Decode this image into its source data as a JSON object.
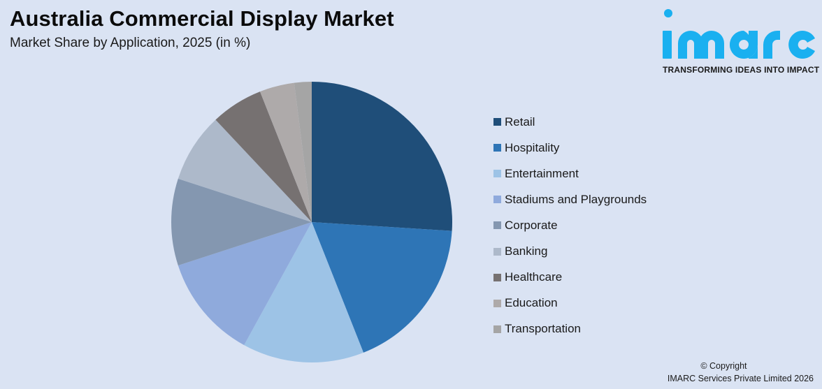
{
  "header": {
    "title": "Australia Commercial Display Market",
    "subtitle": "Market Share by Application, 2025 (in %)"
  },
  "logo": {
    "wordmark": "imarc",
    "tagline": "TRANSFORMING IDEAS INTO IMPACT",
    "color": "#1ab0f0"
  },
  "footer": {
    "copyright_line1": "© Copyright",
    "copyright_line2": "IMARC Services Private Limited 2026"
  },
  "colors": {
    "background": "#dae3f3"
  },
  "legend": {
    "items": [
      {
        "label": "Retail",
        "color": "#1f4e79"
      },
      {
        "label": "Hospitality",
        "color": "#2e75b6"
      },
      {
        "label": "Entertainment",
        "color": "#9dc3e6"
      },
      {
        "label": "Stadiums and Playgrounds",
        "color": "#8faadc"
      },
      {
        "label": "Corporate",
        "color": "#8497b0"
      },
      {
        "label": "Banking",
        "color": "#adb9ca"
      },
      {
        "label": "Healthcare",
        "color": "#767171"
      },
      {
        "label": "Education",
        "color": "#aeaaaa"
      },
      {
        "label": "Transportation",
        "color": "#a5a5a5"
      }
    ]
  },
  "chart_data": {
    "type": "pie",
    "title": "Australia Commercial Display Market",
    "subtitle": "Market Share by Application, 2025 (in %)",
    "categories": [
      "Retail",
      "Hospitality",
      "Entertainment",
      "Stadiums and Playgrounds",
      "Corporate",
      "Banking",
      "Healthcare",
      "Education",
      "Transportation"
    ],
    "values": [
      26,
      18,
      14,
      12,
      10,
      8,
      6,
      4,
      2
    ],
    "colors": [
      "#1f4e79",
      "#2e75b6",
      "#9dc3e6",
      "#8faadc",
      "#8497b0",
      "#adb9ca",
      "#767171",
      "#aeaaaa",
      "#a5a5a5"
    ],
    "start_angle_deg": 0,
    "direction": "clockwise",
    "data_labels": false,
    "legend_position": "right",
    "unit": "%"
  }
}
